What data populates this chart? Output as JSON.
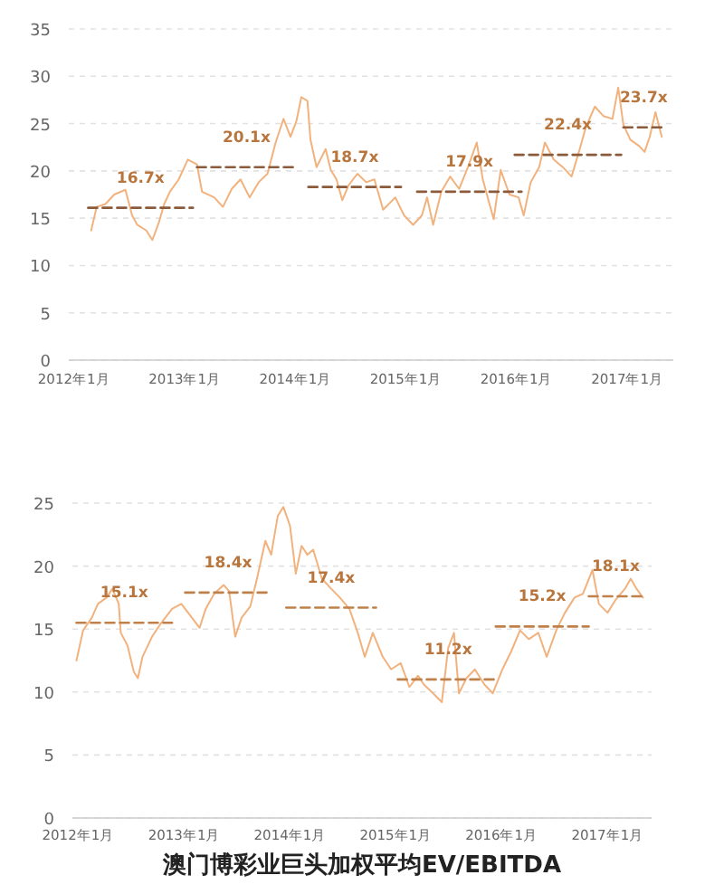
{
  "chart_data": [
    {
      "type": "line",
      "xlim": [
        "2011-12-15",
        "2017-06-02"
      ],
      "ylim": [
        0,
        35
      ],
      "yticks": [
        0,
        5,
        10,
        15,
        20,
        25,
        30,
        35
      ],
      "grid": "y",
      "xticks": [
        {
          "value": "2012-01",
          "label": "2012年1月"
        },
        {
          "value": "2013-01",
          "label": "2013年1月"
        },
        {
          "value": "2014-01",
          "label": "2014年1月"
        },
        {
          "value": "2015-01",
          "label": "2015年1月"
        },
        {
          "value": "2016-01",
          "label": "2016年1月"
        },
        {
          "value": "2017-01",
          "label": "2017年1月"
        }
      ],
      "series": [
        {
          "type": "line",
          "color": "#f2b27e",
          "line_style": "solid",
          "x": [
            "2012-02-27",
            "2012-03-16",
            "2012-04-14",
            "2012-05-13",
            "2012-06-19",
            "2012-07-11",
            "2012-07-28",
            "2012-08-27",
            "2012-09-16",
            "2012-10-08",
            "2012-10-25",
            "2012-11-13",
            "2012-12-12",
            "2013-01-11",
            "2013-02-10",
            "2013-02-27",
            "2013-04-08",
            "2013-05-07",
            "2013-06-05",
            "2013-07-04",
            "2013-08-03",
            "2013-09-02",
            "2013-10-01",
            "2013-10-28",
            "2013-11-23",
            "2013-12-16",
            "2014-01-04",
            "2014-01-21",
            "2014-02-10",
            "2014-02-20",
            "2014-03-12",
            "2014-04-11",
            "2014-04-28",
            "2014-05-17",
            "2014-06-05",
            "2014-06-26",
            "2014-07-25",
            "2014-08-23",
            "2014-09-19",
            "2014-10-18",
            "2014-11-27",
            "2014-12-26",
            "2015-01-25",
            "2015-02-23",
            "2015-03-12",
            "2015-04-01",
            "2015-04-28",
            "2015-05-27",
            "2015-06-26",
            "2015-07-25",
            "2015-08-23",
            "2015-09-12",
            "2015-10-04",
            "2015-10-18",
            "2015-11-10",
            "2015-12-09",
            "2016-01-08",
            "2016-01-25",
            "2016-02-17",
            "2016-03-16",
            "2016-04-04",
            "2016-05-03",
            "2016-06-02",
            "2016-07-01",
            "2016-07-28",
            "2016-08-17",
            "2016-09-16",
            "2016-10-14",
            "2016-11-13",
            "2016-12-02",
            "2016-12-19",
            "2017-01-11",
            "2017-02-10",
            "2017-02-27",
            "2017-03-16",
            "2017-04-04",
            "2017-04-25"
          ],
          "values": [
            13.7,
            16.2,
            16.5,
            17.5,
            18.0,
            15.3,
            14.3,
            13.7,
            12.7,
            14.6,
            16.5,
            17.8,
            19.1,
            21.2,
            20.7,
            17.8,
            17.2,
            16.2,
            18.1,
            19.1,
            17.2,
            18.8,
            19.7,
            23.0,
            25.5,
            23.6,
            25.2,
            27.8,
            27.4,
            23.3,
            20.4,
            22.3,
            20.1,
            19.1,
            16.9,
            18.5,
            19.7,
            18.8,
            19.1,
            15.9,
            17.2,
            15.3,
            14.3,
            15.3,
            17.2,
            14.3,
            17.8,
            19.4,
            18.1,
            20.4,
            23.0,
            19.1,
            16.5,
            14.9,
            20.1,
            17.5,
            17.2,
            15.3,
            18.8,
            20.4,
            23.0,
            21.2,
            20.4,
            19.4,
            22.3,
            24.6,
            26.8,
            25.8,
            25.5,
            28.8,
            24.9,
            23.3,
            22.6,
            22.0,
            23.6,
            26.2,
            23.6
          ]
        },
        {
          "type": "line",
          "color": "#8a5a3a",
          "line_style": "dashed",
          "x": [
            "2012-02-17",
            "2013-01-28"
          ],
          "values": [
            16.1,
            16.1
          ]
        },
        {
          "type": "line",
          "color": "#8a5a3a",
          "line_style": "dashed",
          "x": [
            "2013-02-10",
            "2014-01-04"
          ],
          "values": [
            20.4,
            20.4
          ]
        },
        {
          "type": "line",
          "color": "#8a5a3a",
          "line_style": "dashed",
          "x": [
            "2014-02-13",
            "2014-12-16"
          ],
          "values": [
            18.3,
            18.3
          ]
        },
        {
          "type": "line",
          "color": "#8a5a3a",
          "line_style": "dashed",
          "x": [
            "2015-02-07",
            "2016-01-18"
          ],
          "values": [
            17.8,
            17.8
          ]
        },
        {
          "type": "line",
          "color": "#8a5a3a",
          "line_style": "dashed",
          "x": [
            "2015-12-26",
            "2016-12-12"
          ],
          "values": [
            21.7,
            21.7
          ]
        },
        {
          "type": "line",
          "color": "#8a5a3a",
          "line_style": "dashed",
          "x": [
            "2016-12-19",
            "2017-05-03"
          ],
          "values": [
            24.6,
            24.6
          ]
        }
      ],
      "annotations": [
        "16.7x",
        "20.1x",
        "18.7x",
        "17.9x",
        "22.4x",
        "23.7x"
      ]
    },
    {
      "type": "line",
      "title": "澳门博彩业巨头加权平均EV/EBITDA",
      "xlim": [
        "2011-12-12",
        "2017-06-02"
      ],
      "ylim": [
        0,
        25
      ],
      "yticks": [
        0,
        5,
        10,
        15,
        20,
        25
      ],
      "grid": "y",
      "xticks": [
        {
          "value": "2012-01",
          "label": "2012年1月"
        },
        {
          "value": "2013-01",
          "label": "2013年1月"
        },
        {
          "value": "2014-01",
          "label": "2014年1月"
        },
        {
          "value": "2015-01",
          "label": "2015年1月"
        },
        {
          "value": "2016-01",
          "label": "2016年1月"
        },
        {
          "value": "2017-01",
          "label": "2017年1月"
        }
      ],
      "series": [
        {
          "type": "line",
          "color": "#f2b27e",
          "line_style": "solid",
          "x": [
            "2011-12-26",
            "2012-01-18",
            "2012-02-17",
            "2012-03-09",
            "2012-04-08",
            "2012-04-28",
            "2012-05-20",
            "2012-05-27",
            "2012-06-19",
            "2012-07-11",
            "2012-07-25",
            "2012-08-10",
            "2012-09-12",
            "2012-10-11",
            "2012-11-20",
            "2012-12-22",
            "2013-01-21",
            "2013-02-23",
            "2013-03-16",
            "2013-04-14",
            "2013-05-17",
            "2013-06-05",
            "2013-06-26",
            "2013-07-18",
            "2013-08-17",
            "2013-09-09",
            "2013-10-08",
            "2013-10-28",
            "2013-11-20",
            "2013-12-09",
            "2014-01-01",
            "2014-01-21",
            "2014-02-10",
            "2014-03-02",
            "2014-03-22",
            "2014-04-21",
            "2014-05-23",
            "2014-06-22",
            "2014-07-25",
            "2014-08-23",
            "2014-09-16",
            "2014-10-14",
            "2014-11-17",
            "2014-12-16",
            "2015-01-18",
            "2015-02-17",
            "2015-03-19",
            "2015-04-08",
            "2015-05-10",
            "2015-06-09",
            "2015-07-01",
            "2015-07-21",
            "2015-08-07",
            "2015-09-02",
            "2015-10-01",
            "2015-11-03",
            "2015-12-02",
            "2016-01-04",
            "2016-02-03",
            "2016-03-05",
            "2016-04-04",
            "2016-05-07",
            "2016-06-05",
            "2016-07-08",
            "2016-08-07",
            "2016-09-09",
            "2016-10-08",
            "2016-11-10",
            "2016-12-02",
            "2017-01-01",
            "2017-01-28",
            "2017-03-02",
            "2017-03-22",
            "2017-04-11",
            "2017-05-03"
          ],
          "values": [
            12.5,
            14.9,
            15.9,
            17.0,
            17.5,
            18.2,
            17.0,
            14.7,
            13.7,
            11.6,
            11.1,
            12.8,
            14.4,
            15.4,
            16.6,
            17.0,
            16.1,
            15.1,
            16.6,
            17.8,
            18.5,
            18.0,
            14.4,
            15.9,
            16.8,
            19.0,
            22.0,
            20.9,
            24.0,
            24.7,
            23.2,
            19.4,
            21.6,
            20.9,
            21.3,
            19.0,
            18.2,
            17.5,
            16.6,
            14.7,
            12.8,
            14.7,
            12.8,
            11.8,
            12.3,
            10.4,
            11.3,
            10.6,
            9.9,
            9.2,
            13.5,
            14.7,
            9.9,
            11.1,
            11.8,
            10.6,
            9.9,
            11.8,
            13.2,
            14.9,
            14.2,
            14.7,
            12.8,
            14.9,
            16.3,
            17.5,
            17.8,
            19.7,
            17.0,
            16.3,
            17.3,
            18.2,
            19.0,
            18.2,
            17.5
          ]
        },
        {
          "type": "line",
          "color": "#c0804a",
          "line_style": "dashed",
          "x": [
            "2011-12-26",
            "2012-11-20"
          ],
          "values": [
            15.5,
            15.5
          ]
        },
        {
          "type": "line",
          "color": "#c0804a",
          "line_style": "dashed",
          "x": [
            "2013-01-04",
            "2013-10-28"
          ],
          "values": [
            17.9,
            17.9
          ]
        },
        {
          "type": "line",
          "color": "#c0804a",
          "line_style": "dashed",
          "x": [
            "2013-12-19",
            "2014-10-25"
          ],
          "values": [
            16.7,
            16.7
          ]
        },
        {
          "type": "line",
          "color": "#c0804a",
          "line_style": "dashed",
          "x": [
            "2015-01-08",
            "2015-12-22"
          ],
          "values": [
            11.0,
            11.0
          ]
        },
        {
          "type": "line",
          "color": "#c0804a",
          "line_style": "dashed",
          "x": [
            "2015-12-12",
            "2016-10-28"
          ],
          "values": [
            15.2,
            15.2
          ]
        },
        {
          "type": "line",
          "color": "#c0804a",
          "line_style": "dashed",
          "x": [
            "2016-10-28",
            "2017-05-03"
          ],
          "values": [
            17.6,
            17.6
          ]
        }
      ],
      "annotations": [
        "15.1x",
        "18.4x",
        "17.4x",
        "11.2x",
        "15.2x",
        "18.1x"
      ]
    }
  ]
}
